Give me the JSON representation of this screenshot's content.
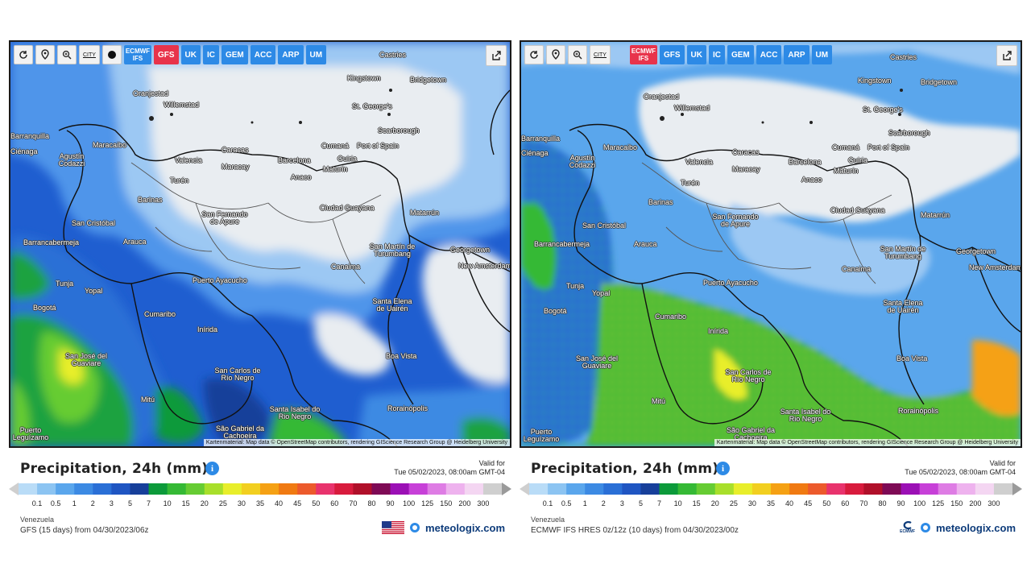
{
  "panels": [
    {
      "id": "gfs",
      "toolbar": {
        "tools": [
          "reload-icon",
          "location-pin-icon",
          "zoom-icon",
          "city-toggle",
          "dot-icon"
        ],
        "city_label": "CITY",
        "models": [
          {
            "label": "ECMWF IFS",
            "active": false
          },
          {
            "label": "GFS",
            "active": true
          },
          {
            "label": "UK",
            "active": false
          },
          {
            "label": "IC",
            "active": false
          },
          {
            "label": "GEM",
            "active": false
          },
          {
            "label": "ACC",
            "active": false
          },
          {
            "label": "ARP",
            "active": false
          },
          {
            "label": "UM",
            "active": false
          }
        ]
      },
      "legend_title": "Precipitation, 24h (mm)",
      "valid_label": "Valid for",
      "valid_time": "Tue 05/02/2023, 08:00am GMT-04",
      "region": "Venezuela",
      "model_info": "GFS (15 days) from 04/30/2023/06z",
      "flag": "us-flag-icon",
      "brand": "meteologix.com"
    },
    {
      "id": "ecmwf",
      "toolbar": {
        "tools": [
          "reload-icon",
          "location-pin-icon",
          "zoom-icon",
          "city-toggle"
        ],
        "city_label": "CITY",
        "models": [
          {
            "label": "ECMWF IFS",
            "active": true
          },
          {
            "label": "GFS",
            "active": false
          },
          {
            "label": "UK",
            "active": false
          },
          {
            "label": "IC",
            "active": false
          },
          {
            "label": "GEM",
            "active": false
          },
          {
            "label": "ACC",
            "active": false
          },
          {
            "label": "ARP",
            "active": false
          },
          {
            "label": "UM",
            "active": false
          }
        ]
      },
      "legend_title": "Precipitation, 24h (mm)",
      "valid_label": "Valid for",
      "valid_time": "Tue 05/02/2023, 08:00am GMT-04",
      "region": "Venezuela",
      "model_info": "ECMWF IFS HRES 0z/12z (10 days) from 04/30/2023/00z",
      "flag": "ecmwf-logo",
      "brand_logo_text": "ECMWF",
      "brand": "meteologix.com"
    }
  ],
  "attribution": "Kartenmaterial: Map data © OpenStreetMap contributors, rendering GIScience Research Group @ Heidelberg University",
  "cities": [
    "Castries",
    "Kingstown",
    "Bridgetown",
    "Oranjestad",
    "Willemstad",
    "St. George's",
    "Scarborough",
    "Port of Spain",
    "Barranquilla",
    "Ciénaga",
    "Maracaibo",
    "Agustín Codazzi",
    "Valencia",
    "Caracas",
    "Maracay",
    "Barcelona",
    "Cumaná",
    "Guiria",
    "Maturín",
    "Turén",
    "Anaco",
    "Barinas",
    "San Fernando de Apure",
    "Ciudad Guayana",
    "Matarrún",
    "San Cristóbal",
    "Barrancabermeja",
    "Arauca",
    "Georgetown",
    "San Martín de Turumbang",
    "New Amsterdam",
    "Canaima",
    "Puerto Ayacucho",
    "Tunja",
    "Yopal",
    "Bogotá",
    "Cumaribo",
    "Santa Elena de Uairén",
    "Inírida",
    "San José del Guaviare",
    "Boa Vista",
    "San Carlos de Río Negro",
    "Mitú",
    "Rorainópolis",
    "São Gabriel da Cachoeira",
    "Santa Isabel do Rio Negro",
    "Puerto Leguízamo"
  ],
  "colorbar": {
    "ticks": [
      "0.1",
      "0.5",
      "1",
      "2",
      "3",
      "5",
      "7",
      "10",
      "15",
      "20",
      "25",
      "30",
      "35",
      "40",
      "45",
      "50",
      "60",
      "70",
      "80",
      "90",
      "100",
      "125",
      "150",
      "200",
      "300"
    ],
    "colors": [
      "#b9dcf7",
      "#8cc4f2",
      "#5aa6ec",
      "#3c8ae3",
      "#2a6fd6",
      "#1f55c2",
      "#173f9a",
      "#0c9a3a",
      "#35b935",
      "#66cc33",
      "#a8df2b",
      "#e8ee2b",
      "#f2cf20",
      "#f5a114",
      "#f07a12",
      "#ec5a2c",
      "#e8336d",
      "#d81b3d",
      "#b0102a",
      "#7e0a55",
      "#9b10b5",
      "#c740d8",
      "#de7ce4",
      "#eeb2ee",
      "#f4d6f2",
      "#cfcfcf"
    ]
  }
}
